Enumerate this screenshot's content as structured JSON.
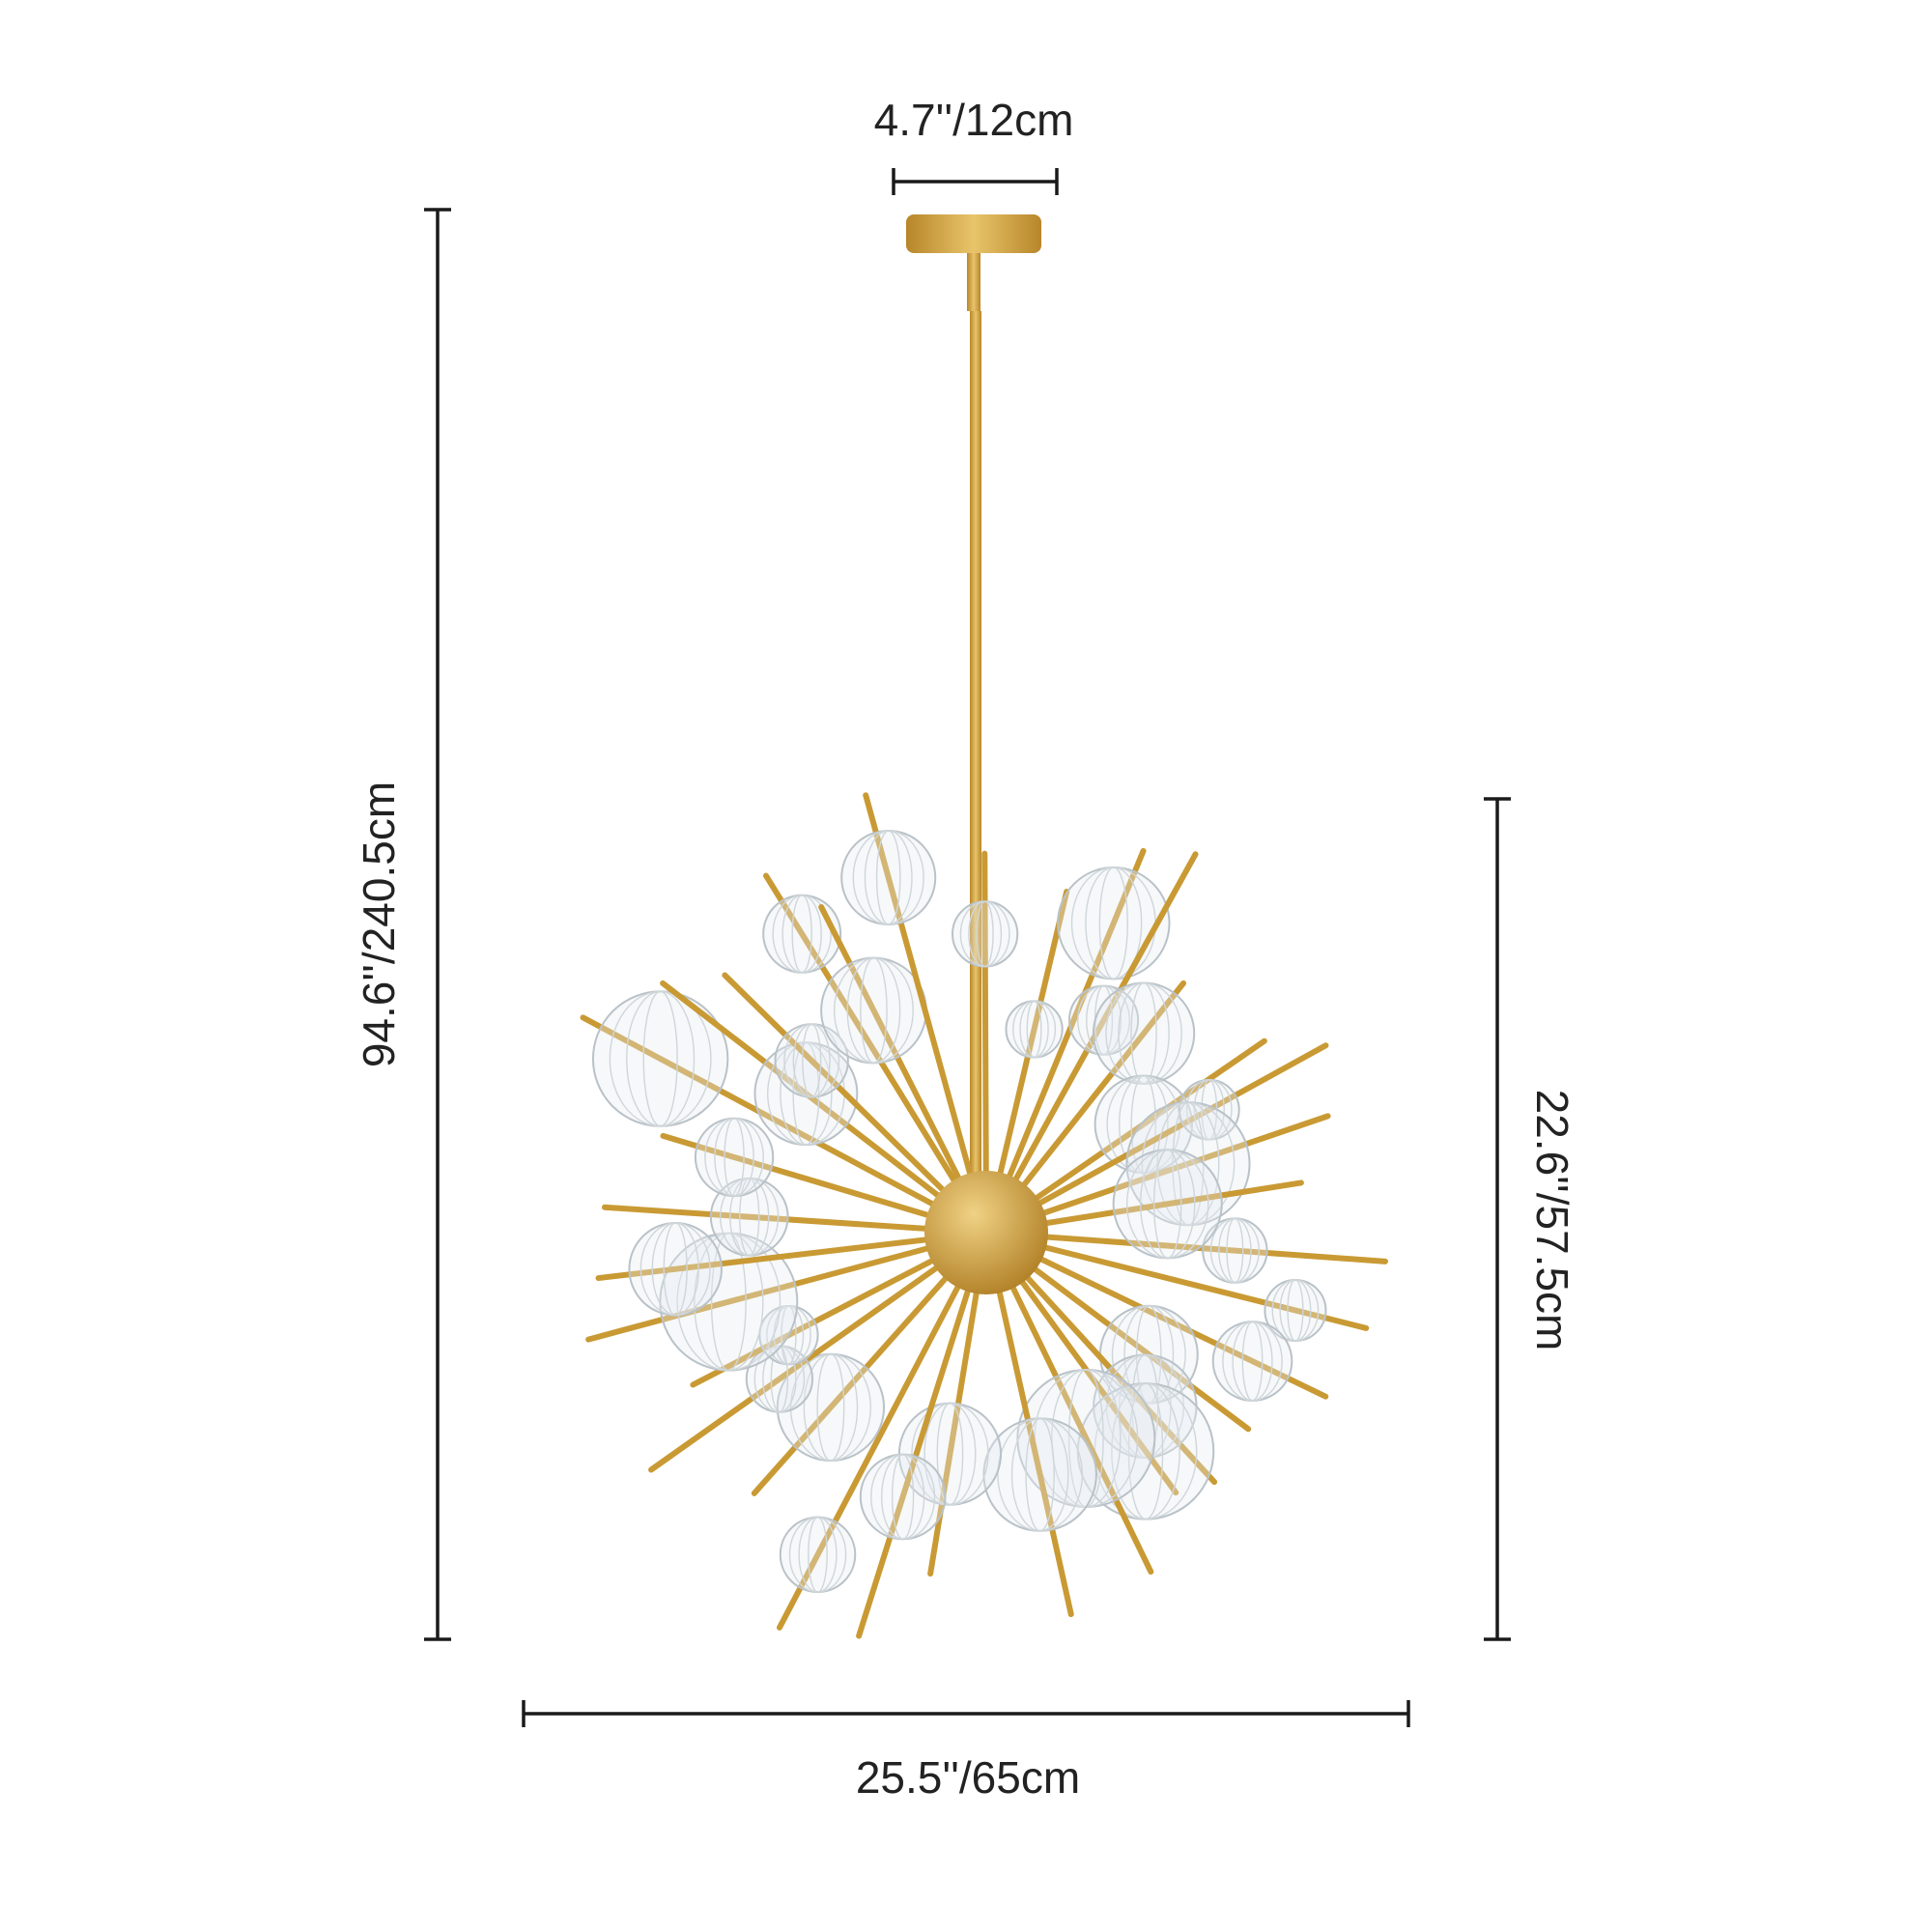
{
  "dimensions": {
    "canopy_width": "4.7''/12cm",
    "overall_height": "94.6''/240.5cm",
    "fixture_height": "22.6''/57.5cm",
    "fixture_width": "25.5''/65cm"
  }
}
